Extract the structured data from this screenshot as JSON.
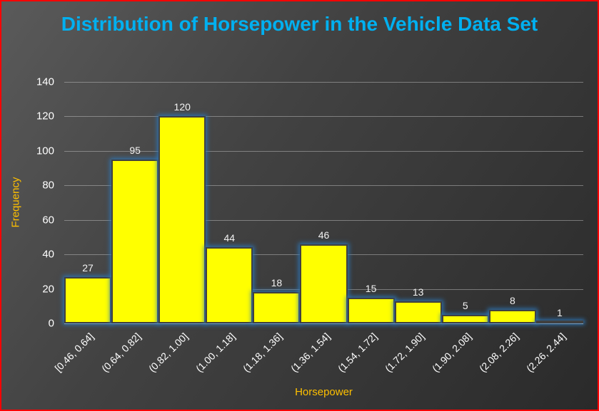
{
  "frame": {
    "border_color": "#FF0000"
  },
  "chart_data": {
    "type": "bar",
    "subtype": "histogram",
    "title": "Distribution of Horsepower in the Vehicle Data Set",
    "xlabel": "Horsepower",
    "ylabel": "Frequency",
    "categories": [
      "[0.46, 0.64]",
      "(0.64, 0.82]",
      "(0.82, 1.00]",
      "(1.00, 1.18]",
      "(1.18, 1.36]",
      "(1.36, 1.54]",
      "(1.54, 1.72]",
      "(1.72, 1.90]",
      "(1.90, 2.08]",
      "(2.08, 2.26]",
      "(2.26, 2.44]"
    ],
    "values": [
      27,
      95,
      120,
      44,
      18,
      46,
      15,
      13,
      5,
      8,
      1
    ],
    "ylim": [
      0,
      140
    ],
    "yticks": [
      0,
      20,
      40,
      60,
      80,
      100,
      120,
      140
    ],
    "grid": true,
    "legend": false,
    "data_labels": true,
    "colors": {
      "bar_fill": "#FFFF00",
      "bar_border": "#404040",
      "bar_glow": "rgba(46,117,182,0.9)",
      "title_text": "#00B0F0",
      "axis_title_text": "#FFC000",
      "tick_text": "#FFFFFF",
      "data_label_text": "#F2F2F2",
      "gridline": "#BFBFBF",
      "background": "#3E3E3E",
      "frame_border": "#FF0000"
    }
  }
}
